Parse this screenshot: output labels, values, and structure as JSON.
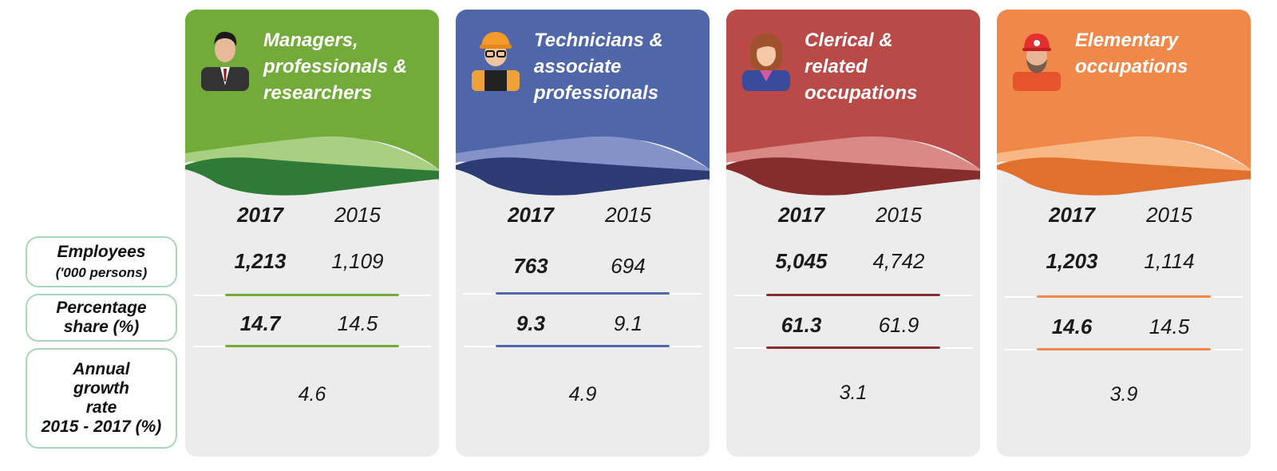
{
  "row_labels": {
    "employees": {
      "main": "Employees",
      "sub": "('000 persons)"
    },
    "percentage": {
      "line1": "Percentage",
      "line2": "share (%)"
    },
    "growth": {
      "line1": "Annual",
      "line2": "growth",
      "line3": "rate",
      "line4": "2015 - 2017 (%)"
    }
  },
  "cards": [
    {
      "title_lines": [
        "Managers,",
        "professionals &",
        "researchers"
      ],
      "color": "#72ab3a",
      "wave_dark": "#2f7a36",
      "wave_light": "#a8cf82",
      "year_current": "2017",
      "year_previous": "2015",
      "employees_current": "1,213",
      "employees_previous": "1,109",
      "share_current": "14.7",
      "share_previous": "14.5",
      "growth": "4.6",
      "icon": "manager-icon"
    },
    {
      "title_lines": [
        "Technicians &",
        "associate",
        "professionals"
      ],
      "color": "#4f66a8",
      "wave_dark": "#2d3b75",
      "wave_light": "#8392c8",
      "year_current": "2017",
      "year_previous": "2015",
      "employees_current": "763",
      "employees_previous": "694",
      "share_current": "9.3",
      "share_previous": "9.1",
      "growth": "4.9",
      "icon": "technician-icon"
    },
    {
      "title_lines": [
        "Clerical &",
        "related",
        "occupations"
      ],
      "color": "#b94a48",
      "wave_dark": "#852c2c",
      "wave_light": "#d98a86",
      "year_current": "2017",
      "year_previous": "2015",
      "employees_current": "5,045",
      "employees_previous": "4,742",
      "share_current": "61.3",
      "share_previous": "61.9",
      "growth": "3.1",
      "icon": "clerk-icon"
    },
    {
      "title_lines": [
        "Elementary",
        "occupations"
      ],
      "color": "#f0884a",
      "wave_dark": "#e0702e",
      "wave_light": "#f8b885",
      "year_current": "2017",
      "year_previous": "2015",
      "employees_current": "1,203",
      "employees_previous": "1,114",
      "share_current": "14.6",
      "share_previous": "14.5",
      "growth": "3.9",
      "icon": "worker-icon"
    }
  ]
}
